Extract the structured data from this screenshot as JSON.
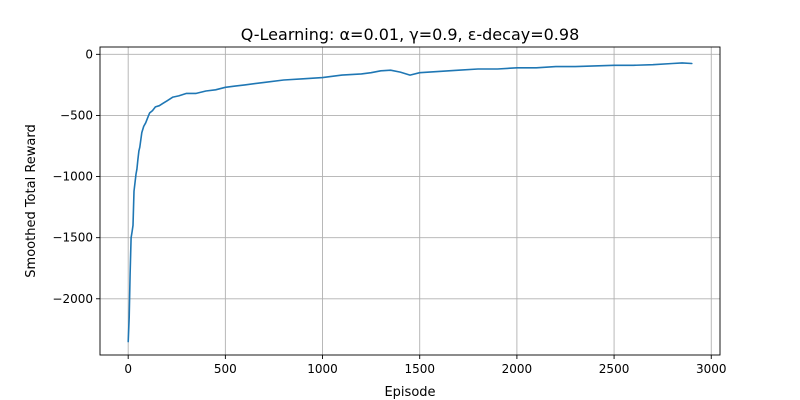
{
  "chart_data": {
    "type": "line",
    "title": "Q-Learning: α=0.01, γ=0.9, ε-decay=0.98",
    "xlabel": "Episode",
    "ylabel": "Smoothed Total Reward",
    "xlim": [
      -145,
      3045
    ],
    "ylim": [
      -2460,
      60
    ],
    "xticks": [
      0,
      500,
      1000,
      1500,
      2000,
      2500,
      3000
    ],
    "yticks": [
      0,
      -500,
      -1000,
      -1500,
      -2000
    ],
    "xtick_labels": [
      "0",
      "500",
      "1000",
      "1500",
      "2000",
      "2500",
      "3000"
    ],
    "ytick_labels": [
      "0",
      "−500",
      "−1000",
      "−1500",
      "−2000"
    ],
    "grid": true,
    "colors": {
      "line": "#1f77b4"
    },
    "series": [
      {
        "x": [
          0,
          5,
          10,
          15,
          20,
          25,
          30,
          35,
          40,
          45,
          50,
          55,
          60,
          70,
          80,
          90,
          100,
          110,
          125,
          140,
          160,
          180,
          200,
          230,
          260,
          300,
          350,
          400,
          450,
          500,
          550,
          600,
          700,
          800,
          900,
          1000,
          1100,
          1200,
          1250,
          1300,
          1350,
          1400,
          1450,
          1500,
          1600,
          1700,
          1800,
          1900,
          2000,
          2100,
          2200,
          2300,
          2400,
          2500,
          2600,
          2700,
          2800,
          2850,
          2900
        ],
        "y": [
          -2350,
          -2150,
          -1800,
          -1500,
          -1450,
          -1400,
          -1120,
          -1050,
          -980,
          -940,
          -860,
          -790,
          -760,
          -640,
          -590,
          -560,
          -520,
          -480,
          -460,
          -430,
          -420,
          -400,
          -380,
          -350,
          -340,
          -320,
          -320,
          -300,
          -290,
          -270,
          -260,
          -250,
          -230,
          -210,
          -200,
          -190,
          -170,
          -160,
          -150,
          -135,
          -130,
          -145,
          -170,
          -150,
          -140,
          -130,
          -120,
          -120,
          -110,
          -110,
          -100,
          -100,
          -95,
          -90,
          -90,
          -85,
          -75,
          -70,
          -75
        ]
      }
    ]
  }
}
